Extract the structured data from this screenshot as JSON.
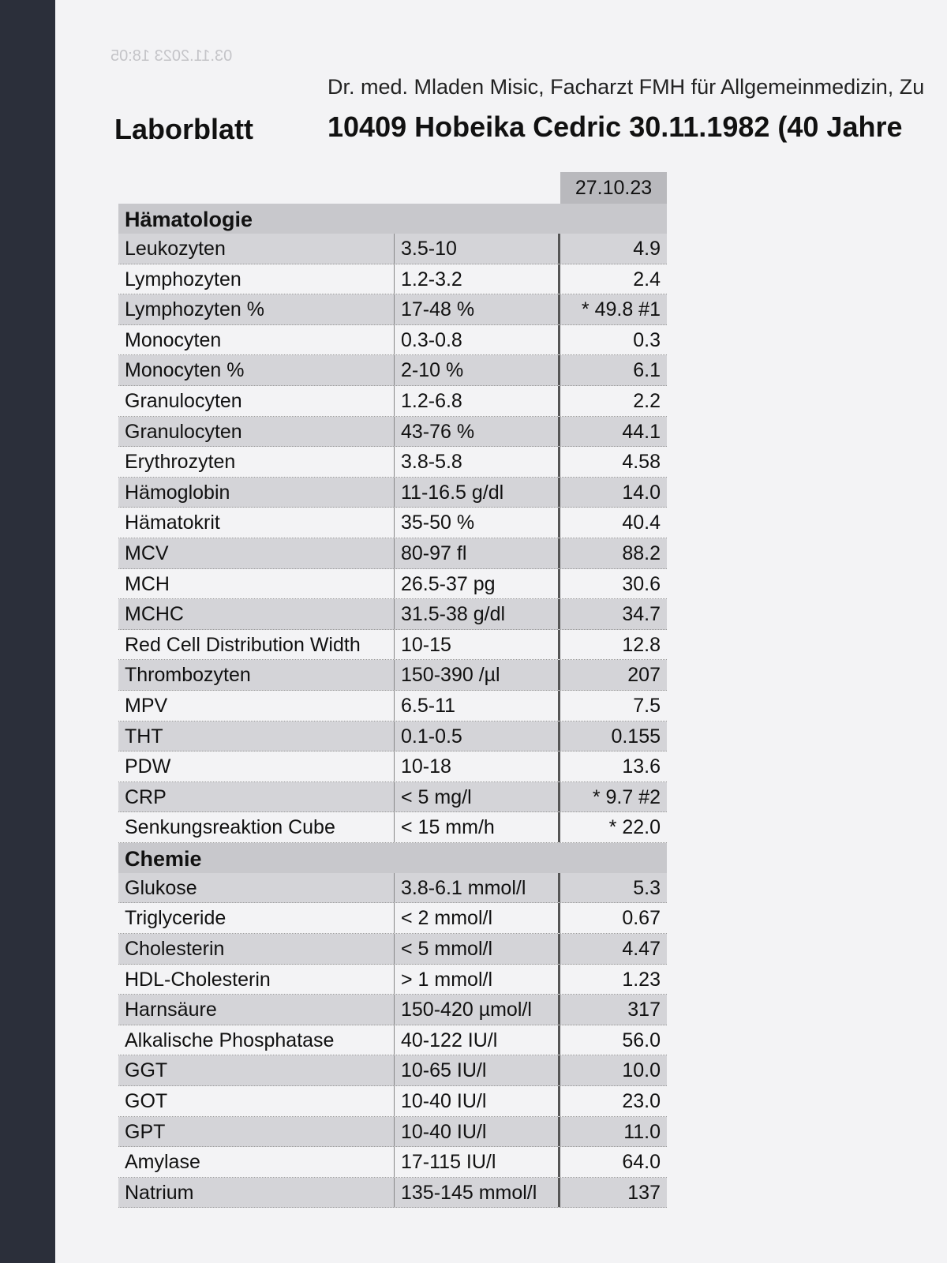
{
  "header": {
    "stamp": "03.11.2023 18:05",
    "doctor": "Dr. med. Mladen Misic, Facharzt FMH für Allgemeinmedizin, Zu",
    "title": "Laborblatt",
    "patient": "10409 Hobeika Cedric 30.11.1982 (40 Jahre"
  },
  "table": {
    "date": "27.10.23",
    "sections": [
      {
        "title": "Hämatologie",
        "rows": [
          [
            "Leukozyten",
            "3.5-10",
            "4.9"
          ],
          [
            "Lymphozyten",
            "1.2-3.2",
            "2.4"
          ],
          [
            "Lymphozyten %",
            "17-48 %",
            "* 49.8 #1"
          ],
          [
            "Monocyten",
            "0.3-0.8",
            "0.3"
          ],
          [
            "Monocyten %",
            "2-10 %",
            "6.1"
          ],
          [
            "Granulocyten",
            "1.2-6.8",
            "2.2"
          ],
          [
            "Granulocyten",
            "43-76 %",
            "44.1"
          ],
          [
            "Erythrozyten",
            "3.8-5.8",
            "4.58"
          ],
          [
            "Hämoglobin",
            "11-16.5 g/dl",
            "14.0"
          ],
          [
            "Hämatokrit",
            "35-50 %",
            "40.4"
          ],
          [
            "MCV",
            "80-97 fl",
            "88.2"
          ],
          [
            "MCH",
            "26.5-37 pg",
            "30.6"
          ],
          [
            "MCHC",
            "31.5-38 g/dl",
            "34.7"
          ],
          [
            "Red Cell Distribution Width",
            "10-15",
            "12.8"
          ],
          [
            "Thrombozyten",
            "150-390 /µl",
            "207"
          ],
          [
            "MPV",
            "6.5-11",
            "7.5"
          ],
          [
            "THT",
            "0.1-0.5",
            "0.155"
          ],
          [
            "PDW",
            "10-18",
            "13.6"
          ],
          [
            "CRP",
            "< 5 mg/l",
            "* 9.7 #2"
          ],
          [
            "Senkungsreaktion Cube",
            "< 15 mm/h",
            "* 22.0"
          ]
        ]
      },
      {
        "title": "Chemie",
        "rows": [
          [
            "Glukose",
            "3.8-6.1 mmol/l",
            "5.3"
          ],
          [
            "Triglyceride",
            "< 2 mmol/l",
            "0.67"
          ],
          [
            "Cholesterin",
            "< 5 mmol/l",
            "4.47"
          ],
          [
            "HDL-Cholesterin",
            "> 1 mmol/l",
            "1.23"
          ],
          [
            "Harnsäure",
            "150-420 µmol/l",
            "317"
          ],
          [
            "Alkalische Phosphatase",
            "40-122 IU/l",
            "56.0"
          ],
          [
            "GGT",
            "10-65 IU/l",
            "10.0"
          ],
          [
            "GOT",
            "10-40 IU/l",
            "23.0"
          ],
          [
            "GPT",
            "10-40 IU/l",
            "11.0"
          ],
          [
            "Amylase",
            "17-115 IU/l",
            "64.0"
          ],
          [
            "Natrium",
            "135-145 mmol/l",
            "137"
          ]
        ]
      }
    ]
  }
}
